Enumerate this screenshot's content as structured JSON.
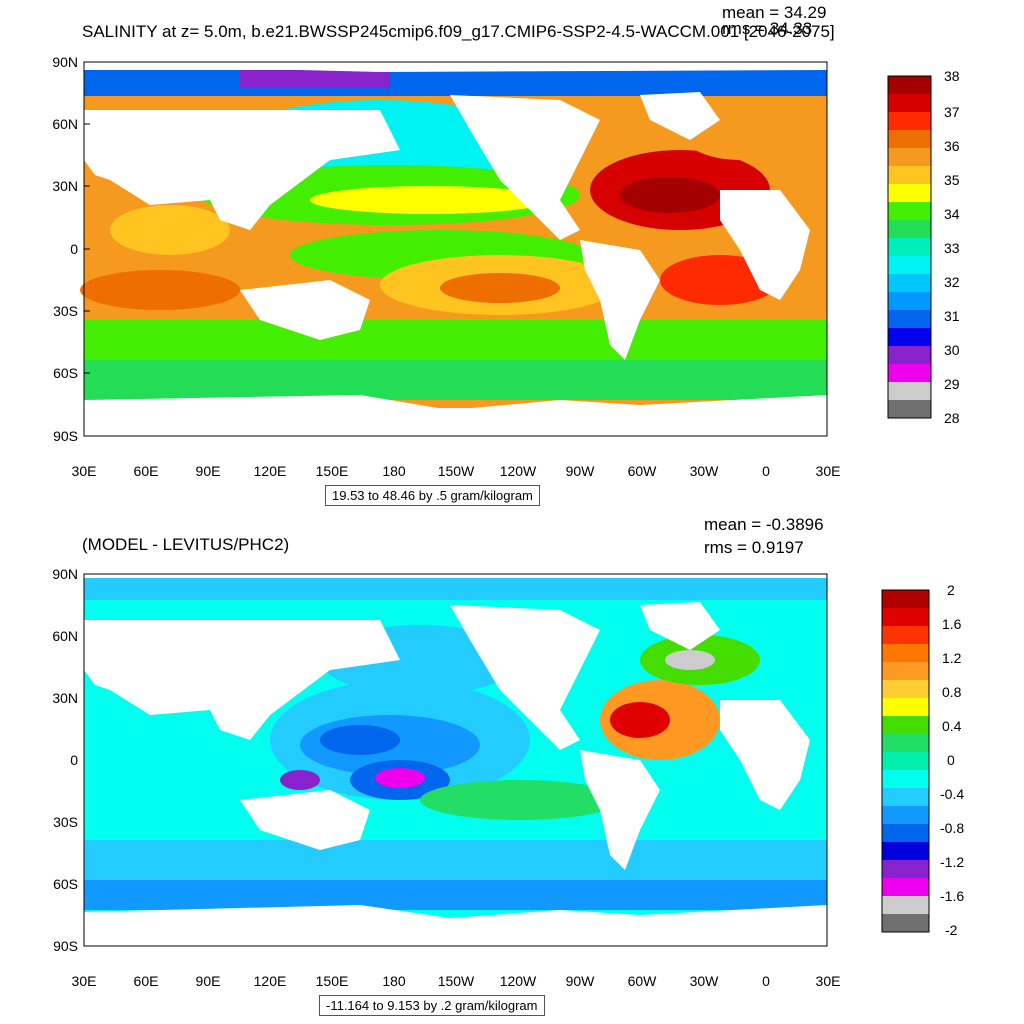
{
  "panel1": {
    "title": "SALINITY at z=   5.0m, b.e21.BWSSP245cmip6.f09_g17.CMIP6-SSP2-4.5-WACCM.001 [2046-2075]",
    "mean": "mean = 34.29",
    "rms": "rms = 34.33",
    "range_label": "19.53 to 48.46 by .5 gram/kilogram",
    "lat_labels": [
      "90N",
      "60N",
      "30N",
      "0",
      "30S",
      "60S",
      "90S"
    ],
    "lon_labels": [
      "30E",
      "60E",
      "90E",
      "120E",
      "150E",
      "180",
      "150W",
      "120W",
      "90W",
      "60W",
      "30W",
      "0",
      "30E"
    ],
    "legend_labels": [
      "38",
      "37",
      "36",
      "35",
      "34",
      "33",
      "32",
      "31",
      "30",
      "29",
      "28"
    ],
    "legend_colors": [
      "#a50000",
      "#d70000",
      "#ff2a00",
      "#ee6f00",
      "#f59a1e",
      "#ffc420",
      "#ffff00",
      "#44ee00",
      "#22dd55",
      "#00eebb",
      "#00f3f3",
      "#00c8ff",
      "#0099ff",
      "#0066ee",
      "#0000ee",
      "#8822cc",
      "#ee00ee",
      "#cccccc",
      "#707070"
    ]
  },
  "panel2": {
    "title": "(MODEL - LEVITUS/PHC2)",
    "mean": "mean = -0.3896",
    "rms": "rms = 0.9197",
    "range_label": "-11.164 to 9.153 by .2 gram/kilogram",
    "lat_labels": [
      "90N",
      "60N",
      "30N",
      "0",
      "30S",
      "60S",
      "90S"
    ],
    "lon_labels": [
      "30E",
      "60E",
      "90E",
      "120E",
      "150E",
      "180",
      "150W",
      "120W",
      "90W",
      "60W",
      "30W",
      "0",
      "30E"
    ],
    "legend_labels": [
      "2",
      "1.6",
      "1.2",
      "0.8",
      "0.4",
      "0",
      "-0.4",
      "-0.8",
      "-1.2",
      "-1.6",
      "-2"
    ],
    "legend_colors": [
      "#b00000",
      "#e00000",
      "#ff3300",
      "#ff7700",
      "#ff9922",
      "#ffcc33",
      "#ffff00",
      "#44dd00",
      "#22dd66",
      "#00eeaa",
      "#00ffee",
      "#22ccff",
      "#1199ff",
      "#0066ee",
      "#0000dd",
      "#8822cc",
      "#ee00ee",
      "#cccccc",
      "#707070"
    ]
  }
}
